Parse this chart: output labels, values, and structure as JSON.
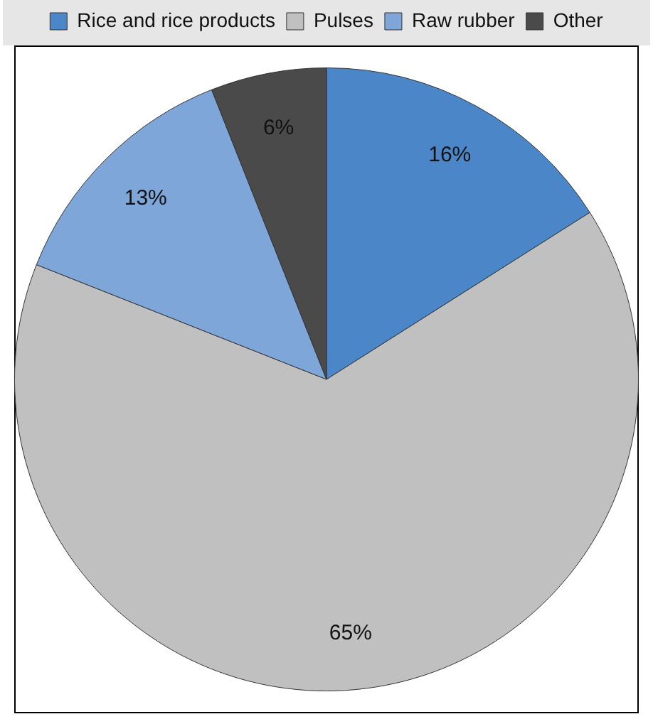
{
  "chart_data": {
    "type": "pie",
    "categories": [
      "Rice and rice products",
      "Pulses",
      "Raw rubber",
      "Other"
    ],
    "values": [
      16,
      65,
      13,
      6
    ],
    "colors": [
      "#4a86c8",
      "#c0c0c0",
      "#7ea6d8",
      "#4a4a4a"
    ],
    "value_labels": [
      "16%",
      "65%",
      "13%",
      "6%"
    ],
    "legend": "top"
  }
}
